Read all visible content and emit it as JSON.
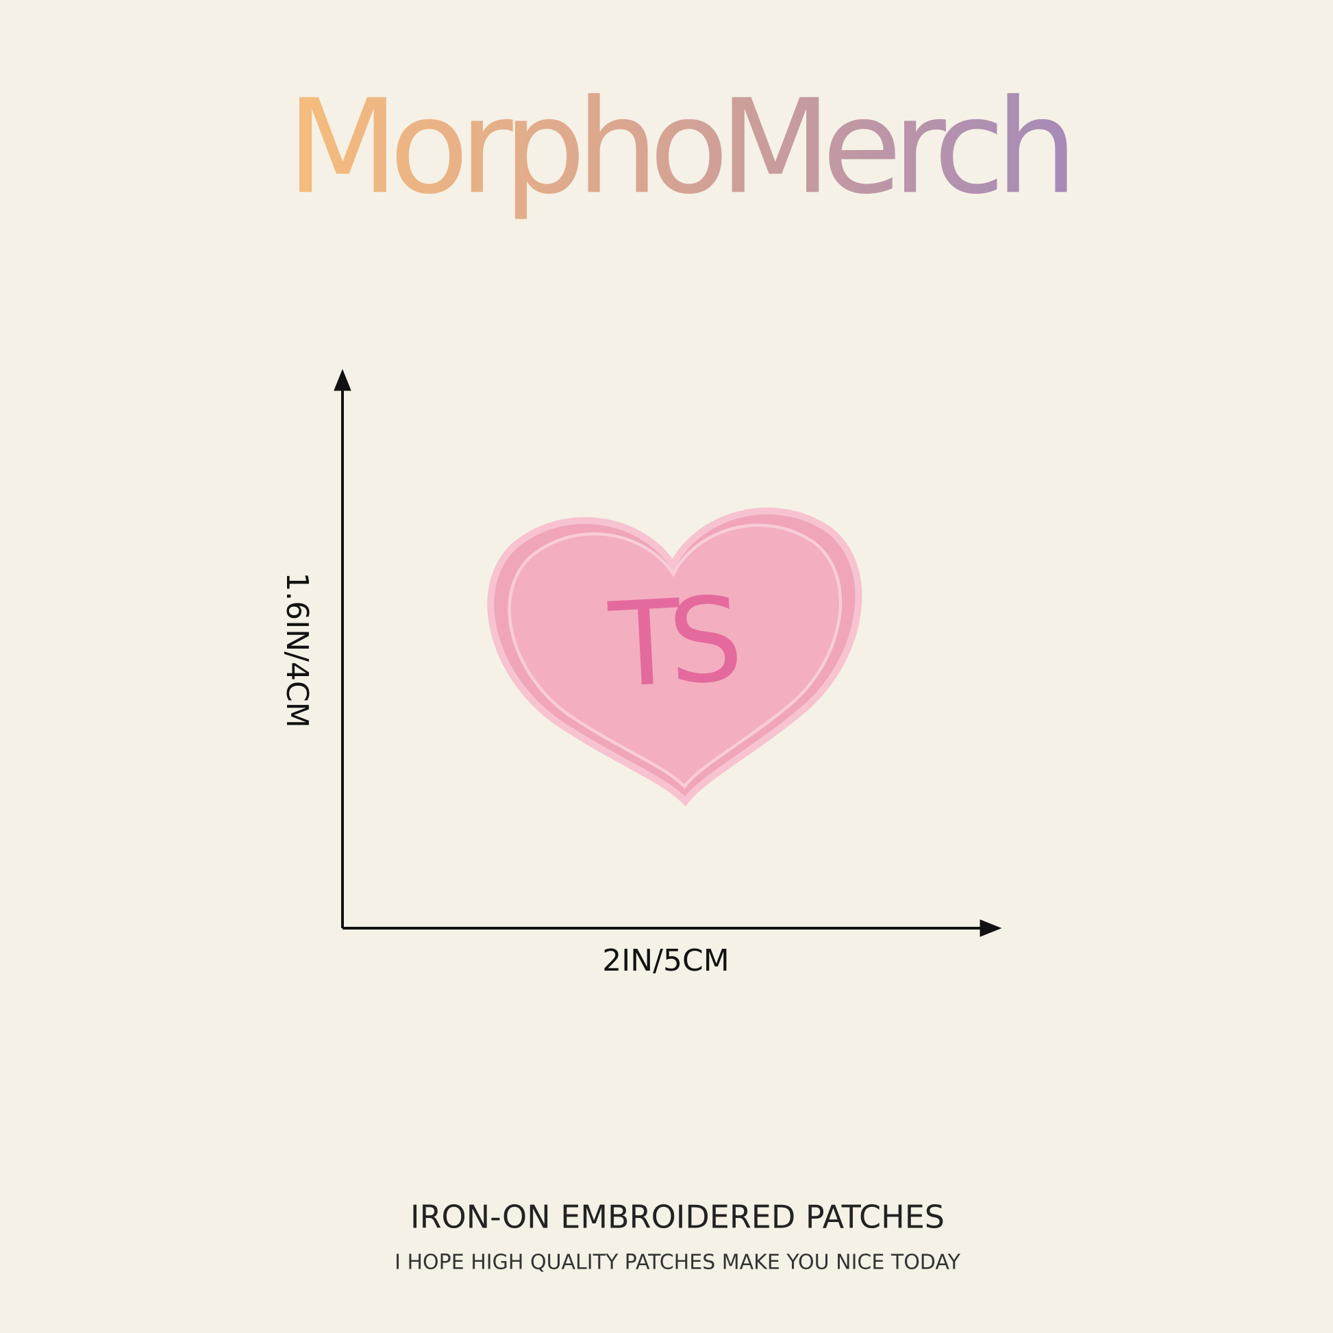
{
  "brand": "MorphoMerch",
  "patch": {
    "text": "TS"
  },
  "dimensions": {
    "height_label": "1.6IN/4CM",
    "width_label": "2IN/5CM"
  },
  "footer": {
    "title": "IRON-ON EMBROIDERED PATCHES",
    "subtitle": "I HOPE HIGH QUALITY PATCHES MAKE YOU NICE TODAY"
  }
}
